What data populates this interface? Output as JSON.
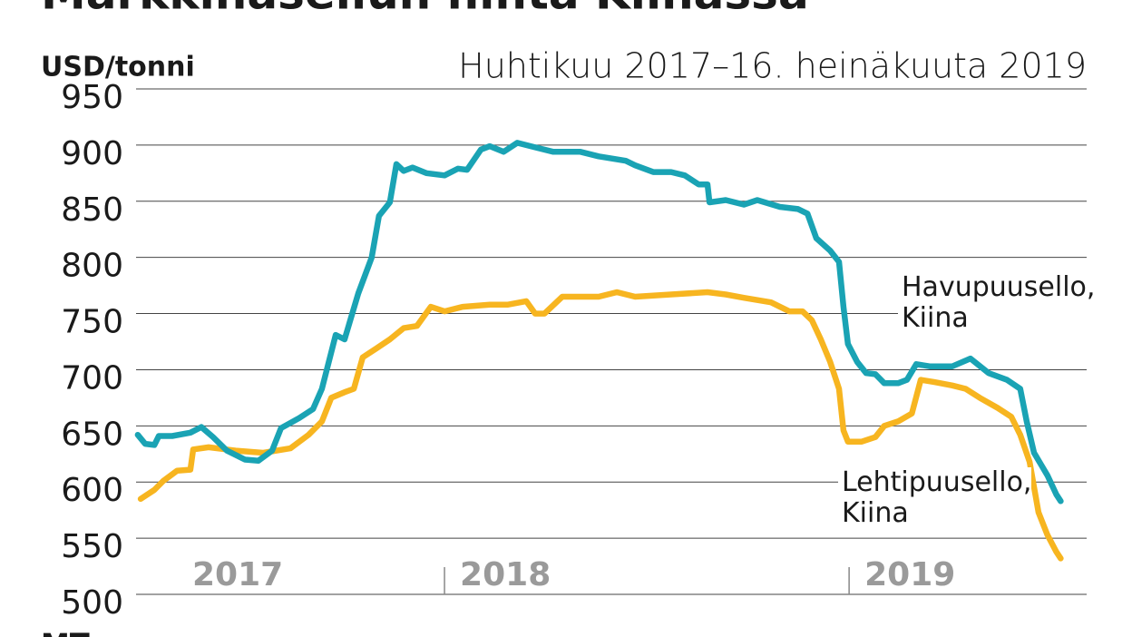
{
  "chart_data": {
    "type": "line",
    "title": "Markkinasellun hinta Kiinassa",
    "subtitle": "Huhtikuu 2017–16. heinäkuuta 2019",
    "y_label": "USD/tonni",
    "source": "MT",
    "xlim": [
      2017.25,
      2019.54
    ],
    "xticks": [
      {
        "value": 2017,
        "label": "2017"
      },
      {
        "value": 2018,
        "label": "2018"
      },
      {
        "value": 2019,
        "label": "2019"
      }
    ],
    "ylim": [
      500,
      950
    ],
    "yticks": [
      500,
      550,
      600,
      650,
      700,
      750,
      800,
      850,
      900,
      950
    ],
    "grid": true,
    "series": [
      {
        "name": "Havupuusello, Kiina",
        "color": "#1aa3b4",
        "x": [
          2017.242,
          2017.26,
          2017.283,
          2017.294,
          2017.327,
          2017.372,
          2017.399,
          2017.428,
          2017.462,
          2017.507,
          2017.54,
          2017.574,
          2017.596,
          2017.641,
          2017.675,
          2017.697,
          2017.731,
          2017.753,
          2017.787,
          2017.82,
          2017.838,
          2017.865,
          2017.881,
          2017.899,
          2017.921,
          2017.955,
          2018.0,
          2018.033,
          2018.056,
          2018.09,
          2018.112,
          2018.146,
          2018.18,
          2018.224,
          2018.269,
          2018.336,
          2018.381,
          2018.448,
          2018.471,
          2018.516,
          2018.56,
          2018.594,
          2018.628,
          2018.65,
          2018.655,
          2018.695,
          2018.74,
          2018.773,
          2018.829,
          2018.874,
          2018.897,
          2018.919,
          2018.953,
          2018.975,
          2018.986,
          2018.997,
          2019.02,
          2019.042,
          2019.065,
          2019.087,
          2019.121,
          2019.143,
          2019.166,
          2019.199,
          2019.255,
          2019.3,
          2019.345,
          2019.39,
          2019.423,
          2019.439,
          2019.457,
          2019.49,
          2019.512,
          2019.523
        ],
        "values": [
          642,
          634,
          633,
          641,
          641,
          644,
          649,
          640,
          628,
          620,
          619,
          628,
          648,
          657,
          665,
          683,
          731,
          727,
          768,
          800,
          837,
          849,
          883,
          877,
          880,
          875,
          873,
          879,
          878,
          896,
          899,
          894,
          902,
          898,
          894,
          894,
          890,
          886,
          882,
          876,
          876,
          873,
          865,
          865,
          849,
          851,
          847,
          851,
          845,
          843,
          839,
          817,
          806,
          796,
          756,
          723,
          707,
          697,
          696,
          688,
          688,
          691,
          705,
          703,
          703,
          710,
          697,
          691,
          683,
          654,
          626,
          606,
          589,
          583
        ]
      },
      {
        "name": "Lehtipuusello, Kiina",
        "color": "#f7b520",
        "x": [
          2017.249,
          2017.283,
          2017.305,
          2017.339,
          2017.372,
          2017.379,
          2017.417,
          2017.484,
          2017.552,
          2017.619,
          2017.664,
          2017.697,
          2017.72,
          2017.753,
          2017.776,
          2017.798,
          2017.832,
          2017.865,
          2017.899,
          2017.932,
          2017.966,
          2018.0,
          2018.045,
          2018.112,
          2018.157,
          2018.202,
          2018.224,
          2018.247,
          2018.291,
          2018.381,
          2018.426,
          2018.471,
          2018.56,
          2018.65,
          2018.695,
          2018.74,
          2018.807,
          2018.852,
          2018.885,
          2018.908,
          2018.93,
          2018.953,
          2018.975,
          2018.986,
          2018.997,
          2019.031,
          2019.065,
          2019.087,
          2019.121,
          2019.155,
          2019.177,
          2019.211,
          2019.255,
          2019.288,
          2019.323,
          2019.367,
          2019.401,
          2019.423,
          2019.446,
          2019.468,
          2019.49,
          2019.512,
          2019.523
        ],
        "values": [
          585,
          593,
          601,
          610,
          611,
          629,
          631,
          628,
          626,
          630,
          642,
          654,
          675,
          680,
          683,
          711,
          719,
          727,
          737,
          739,
          756,
          752,
          756,
          758,
          758,
          761,
          750,
          750,
          765,
          765,
          769,
          765,
          767,
          769,
          767,
          764,
          760,
          752,
          752,
          744,
          727,
          707,
          683,
          646,
          636,
          636,
          640,
          650,
          654,
          661,
          691,
          689,
          686,
          683,
          675,
          666,
          658,
          642,
          618,
          573,
          553,
          538,
          532
        ]
      }
    ]
  }
}
